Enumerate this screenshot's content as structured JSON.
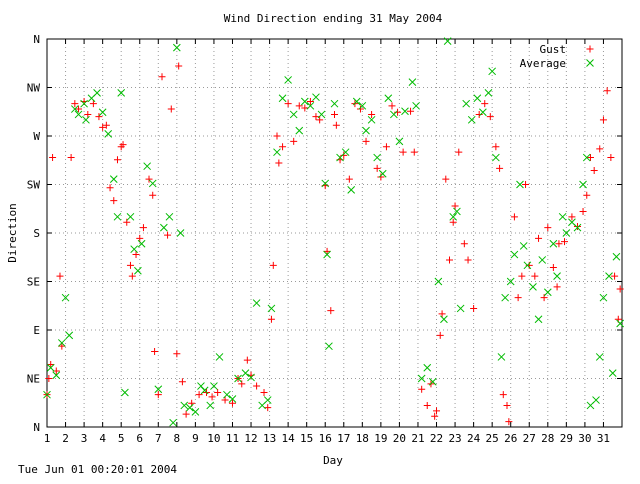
{
  "chart_data": {
    "type": "scatter",
    "title": "Wind Direction ending 31 May 2004",
    "xlabel": "Day",
    "ylabel": "Direction",
    "xlim": [
      1,
      32
    ],
    "ylim": [
      0,
      360
    ],
    "x_ticks": [
      "1",
      "2",
      "3",
      "4",
      "5",
      "6",
      "7",
      "8",
      "9",
      "10",
      "11",
      "12",
      "13",
      "14",
      "15",
      "16",
      "17",
      "18",
      "19",
      "20",
      "21",
      "22",
      "23",
      "24",
      "25",
      "26",
      "27",
      "28",
      "29",
      "30",
      "31"
    ],
    "y_ticks": [
      {
        "label": "N",
        "value": 0
      },
      {
        "label": "NE",
        "value": 45
      },
      {
        "label": "E",
        "value": 90
      },
      {
        "label": "SE",
        "value": 135
      },
      {
        "label": "S",
        "value": 180
      },
      {
        "label": "SW",
        "value": 225
      },
      {
        "label": "W",
        "value": 270
      },
      {
        "label": "NW",
        "value": 315
      },
      {
        "label": "N",
        "value": 360
      }
    ],
    "grid": true,
    "legend_position": "top-right",
    "series": [
      {
        "name": "Gust",
        "marker": "plus",
        "color": "#ff0000",
        "points": [
          [
            1.0,
            30
          ],
          [
            1.1,
            45
          ],
          [
            1.2,
            58
          ],
          [
            1.3,
            250
          ],
          [
            1.5,
            52
          ],
          [
            1.7,
            140
          ],
          [
            1.8,
            75
          ],
          [
            2.3,
            250
          ],
          [
            2.5,
            300
          ],
          [
            2.7,
            295
          ],
          [
            3.0,
            302
          ],
          [
            3.2,
            290
          ],
          [
            3.5,
            300
          ],
          [
            3.8,
            288
          ],
          [
            4.0,
            278
          ],
          [
            4.2,
            280
          ],
          [
            4.4,
            222
          ],
          [
            4.6,
            210
          ],
          [
            4.8,
            248
          ],
          [
            5.0,
            260
          ],
          [
            5.1,
            262
          ],
          [
            5.3,
            190
          ],
          [
            5.5,
            150
          ],
          [
            5.6,
            140
          ],
          [
            5.8,
            160
          ],
          [
            6.0,
            175
          ],
          [
            6.2,
            185
          ],
          [
            6.5,
            230
          ],
          [
            6.7,
            215
          ],
          [
            6.8,
            70
          ],
          [
            7.0,
            30
          ],
          [
            7.2,
            325
          ],
          [
            7.5,
            178
          ],
          [
            7.7,
            295
          ],
          [
            8.0,
            68
          ],
          [
            8.1,
            335
          ],
          [
            8.3,
            42
          ],
          [
            8.5,
            12
          ],
          [
            8.8,
            22
          ],
          [
            9.2,
            30
          ],
          [
            9.6,
            32
          ],
          [
            9.9,
            28
          ],
          [
            10.2,
            32
          ],
          [
            10.6,
            25
          ],
          [
            11.0,
            22
          ],
          [
            11.3,
            45
          ],
          [
            11.5,
            40
          ],
          [
            11.8,
            62
          ],
          [
            12.0,
            48
          ],
          [
            12.3,
            38
          ],
          [
            12.7,
            32
          ],
          [
            12.9,
            18
          ],
          [
            13.1,
            100
          ],
          [
            13.2,
            150
          ],
          [
            13.4,
            270
          ],
          [
            13.5,
            245
          ],
          [
            13.7,
            260
          ],
          [
            14.0,
            300
          ],
          [
            14.3,
            265
          ],
          [
            14.6,
            298
          ],
          [
            14.9,
            296
          ],
          [
            15.2,
            302
          ],
          [
            15.5,
            288
          ],
          [
            15.7,
            285
          ],
          [
            16.0,
            224
          ],
          [
            16.1,
            163
          ],
          [
            16.3,
            108
          ],
          [
            16.5,
            290
          ],
          [
            16.6,
            280
          ],
          [
            16.8,
            248
          ],
          [
            17.0,
            252
          ],
          [
            17.3,
            230
          ],
          [
            17.6,
            300
          ],
          [
            17.9,
            295
          ],
          [
            18.2,
            265
          ],
          [
            18.5,
            290
          ],
          [
            18.8,
            240
          ],
          [
            19.0,
            232
          ],
          [
            19.3,
            260
          ],
          [
            19.6,
            298
          ],
          [
            19.9,
            292
          ],
          [
            20.2,
            255
          ],
          [
            20.6,
            293
          ],
          [
            20.8,
            255
          ],
          [
            21.2,
            35
          ],
          [
            21.5,
            20
          ],
          [
            21.7,
            40
          ],
          [
            21.9,
            10
          ],
          [
            22.0,
            15
          ],
          [
            22.2,
            85
          ],
          [
            22.3,
            105
          ],
          [
            22.5,
            230
          ],
          [
            22.7,
            155
          ],
          [
            22.9,
            190
          ],
          [
            23.0,
            205
          ],
          [
            23.2,
            255
          ],
          [
            23.5,
            170
          ],
          [
            23.7,
            155
          ],
          [
            24.0,
            110
          ],
          [
            24.3,
            290
          ],
          [
            24.6,
            300
          ],
          [
            24.9,
            288
          ],
          [
            25.2,
            260
          ],
          [
            25.4,
            240
          ],
          [
            25.6,
            30
          ],
          [
            25.8,
            20
          ],
          [
            25.9,
            5
          ],
          [
            26.2,
            195
          ],
          [
            26.4,
            120
          ],
          [
            26.6,
            140
          ],
          [
            26.8,
            225
          ],
          [
            27.0,
            150
          ],
          [
            27.3,
            140
          ],
          [
            27.5,
            175
          ],
          [
            27.8,
            120
          ],
          [
            28.0,
            185
          ],
          [
            28.3,
            148
          ],
          [
            28.5,
            130
          ],
          [
            28.6,
            170
          ],
          [
            28.9,
            172
          ],
          [
            29.3,
            195
          ],
          [
            29.6,
            186
          ],
          [
            29.9,
            200
          ],
          [
            30.1,
            215
          ],
          [
            30.3,
            250
          ],
          [
            30.5,
            238
          ],
          [
            30.8,
            258
          ],
          [
            31.0,
            285
          ],
          [
            31.2,
            312
          ],
          [
            31.4,
            250
          ],
          [
            31.6,
            140
          ],
          [
            31.8,
            100
          ],
          [
            31.9,
            128
          ]
        ]
      },
      {
        "name": "Average",
        "marker": "x",
        "color": "#00bb00",
        "points": [
          [
            1.0,
            30
          ],
          [
            1.2,
            55
          ],
          [
            1.5,
            48
          ],
          [
            1.8,
            78
          ],
          [
            2.0,
            120
          ],
          [
            2.2,
            85
          ],
          [
            2.5,
            295
          ],
          [
            2.7,
            290
          ],
          [
            3.0,
            300
          ],
          [
            3.1,
            285
          ],
          [
            3.4,
            305
          ],
          [
            3.7,
            310
          ],
          [
            4.0,
            292
          ],
          [
            4.3,
            272
          ],
          [
            4.6,
            230
          ],
          [
            4.8,
            195
          ],
          [
            5.0,
            310
          ],
          [
            5.2,
            32
          ],
          [
            5.5,
            195
          ],
          [
            5.7,
            165
          ],
          [
            5.9,
            145
          ],
          [
            6.1,
            170
          ],
          [
            6.4,
            242
          ],
          [
            6.7,
            226
          ],
          [
            7.0,
            35
          ],
          [
            7.3,
            185
          ],
          [
            7.6,
            195
          ],
          [
            7.8,
            4
          ],
          [
            8.0,
            352
          ],
          [
            8.2,
            180
          ],
          [
            8.4,
            20
          ],
          [
            8.7,
            18
          ],
          [
            9.0,
            14
          ],
          [
            9.3,
            38
          ],
          [
            9.5,
            34
          ],
          [
            9.8,
            20
          ],
          [
            10.0,
            38
          ],
          [
            10.3,
            65
          ],
          [
            10.7,
            30
          ],
          [
            11.0,
            26
          ],
          [
            11.3,
            45
          ],
          [
            11.7,
            50
          ],
          [
            12.0,
            46
          ],
          [
            12.3,
            115
          ],
          [
            12.6,
            20
          ],
          [
            12.9,
            25
          ],
          [
            13.1,
            110
          ],
          [
            13.4,
            255
          ],
          [
            13.7,
            305
          ],
          [
            14.0,
            322
          ],
          [
            14.3,
            290
          ],
          [
            14.6,
            275
          ],
          [
            14.9,
            302
          ],
          [
            15.2,
            298
          ],
          [
            15.5,
            306
          ],
          [
            15.8,
            290
          ],
          [
            16.0,
            226
          ],
          [
            16.1,
            160
          ],
          [
            16.2,
            75
          ],
          [
            16.5,
            300
          ],
          [
            16.8,
            250
          ],
          [
            17.1,
            255
          ],
          [
            17.4,
            220
          ],
          [
            17.7,
            302
          ],
          [
            18.0,
            298
          ],
          [
            18.2,
            275
          ],
          [
            18.5,
            285
          ],
          [
            18.8,
            250
          ],
          [
            19.1,
            235
          ],
          [
            19.4,
            305
          ],
          [
            19.7,
            290
          ],
          [
            20.0,
            265
          ],
          [
            20.3,
            293
          ],
          [
            20.7,
            320
          ],
          [
            20.9,
            298
          ],
          [
            21.2,
            45
          ],
          [
            21.5,
            55
          ],
          [
            21.8,
            42
          ],
          [
            22.1,
            135
          ],
          [
            22.4,
            100
          ],
          [
            22.6,
            358
          ],
          [
            22.9,
            195
          ],
          [
            23.1,
            200
          ],
          [
            23.3,
            110
          ],
          [
            23.6,
            300
          ],
          [
            23.9,
            285
          ],
          [
            24.2,
            305
          ],
          [
            24.5,
            292
          ],
          [
            24.8,
            310
          ],
          [
            25.0,
            330
          ],
          [
            25.2,
            250
          ],
          [
            25.5,
            65
          ],
          [
            25.7,
            120
          ],
          [
            26.0,
            135
          ],
          [
            26.2,
            160
          ],
          [
            26.5,
            225
          ],
          [
            26.7,
            168
          ],
          [
            26.9,
            150
          ],
          [
            27.2,
            130
          ],
          [
            27.5,
            100
          ],
          [
            27.7,
            155
          ],
          [
            28.0,
            125
          ],
          [
            28.3,
            170
          ],
          [
            28.5,
            140
          ],
          [
            28.8,
            195
          ],
          [
            29.0,
            180
          ],
          [
            29.3,
            190
          ],
          [
            29.6,
            185
          ],
          [
            29.9,
            225
          ],
          [
            30.1,
            250
          ],
          [
            30.3,
            20
          ],
          [
            30.6,
            25
          ],
          [
            30.8,
            65
          ],
          [
            31.0,
            120
          ],
          [
            31.3,
            140
          ],
          [
            31.5,
            50
          ],
          [
            31.7,
            158
          ],
          [
            31.9,
            96
          ]
        ]
      }
    ]
  },
  "footer": {
    "timestamp": "Tue Jun 01 00:20:01 2004"
  }
}
